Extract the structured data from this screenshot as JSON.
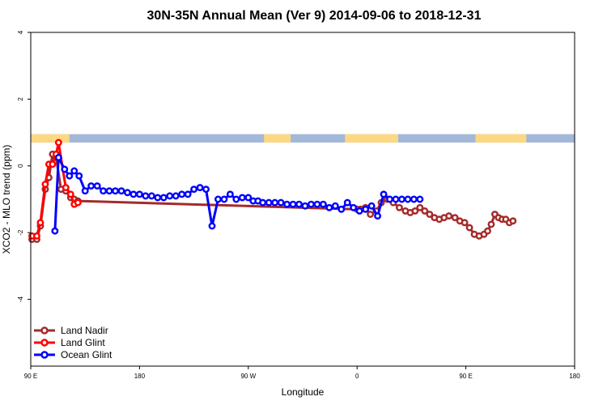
{
  "chart_data": {
    "type": "line",
    "title": "30N-35N Annual Mean (Ver 9)   2014-09-06 to 2018-12-31",
    "xlabel": "Longitude",
    "ylabel": "XCO2 - MLO trend (ppm)",
    "xlim": [
      90,
      540
    ],
    "ylim": [
      -6,
      4
    ],
    "x_ticks": [
      {
        "value": 90,
        "label": "90 E"
      },
      {
        "value": 180,
        "label": "180"
      },
      {
        "value": 270,
        "label": "90 W"
      },
      {
        "value": 360,
        "label": "0"
      },
      {
        "value": 450,
        "label": "90 E"
      },
      {
        "value": 540,
        "label": "180"
      }
    ],
    "y_ticks": [
      {
        "value": 4,
        "label": "4"
      },
      {
        "value": 2,
        "label": "2"
      },
      {
        "value": 0,
        "label": "0"
      },
      {
        "value": -2,
        "label": "-2"
      },
      {
        "value": -4,
        "label": "-4"
      }
    ],
    "legend_position": "bottom-left",
    "band": {
      "y_range": [
        0.7,
        0.95
      ],
      "ocean_color": "#a3b8d8",
      "land_color": "#fcd882",
      "land_segments": [
        [
          90,
          122
        ],
        [
          283,
          305
        ],
        [
          350,
          394
        ],
        [
          458,
          500
        ]
      ]
    },
    "series": [
      {
        "name": "Land Nadir",
        "color": "#a52a2a",
        "x": [
          91,
          95,
          98,
          102,
          105,
          108,
          111,
          115,
          119,
          123,
          126,
          129,
          360,
          363,
          367,
          371,
          376,
          380,
          385,
          390,
          395,
          400,
          404,
          408,
          412,
          416,
          420,
          424,
          428,
          432,
          436,
          441,
          445,
          449,
          453,
          457,
          461,
          465,
          468,
          471,
          474,
          477,
          480,
          483,
          486,
          489
        ],
        "y": [
          -2.2,
          -2.2,
          -1.8,
          -0.7,
          -0.35,
          0.35,
          0.25,
          -0.7,
          -0.75,
          -0.95,
          -1.0,
          -1.05,
          -1.3,
          -1.3,
          -1.25,
          -1.45,
          -1.35,
          -1.1,
          -1.0,
          -1.1,
          -1.25,
          -1.35,
          -1.4,
          -1.35,
          -1.25,
          -1.35,
          -1.45,
          -1.55,
          -1.6,
          -1.55,
          -1.5,
          -1.55,
          -1.65,
          -1.7,
          -1.85,
          -2.05,
          -2.1,
          -2.05,
          -1.95,
          -1.75,
          -1.45,
          -1.55,
          -1.6,
          -1.6,
          -1.7,
          -1.65
        ],
        "x_segments_note": ""
      },
      {
        "name": "Land Glint",
        "color": "#ff0000",
        "x": [
          91,
          95,
          98,
          102,
          105,
          108,
          111,
          113,
          119,
          123,
          126,
          129
        ],
        "y": [
          -2.1,
          -2.1,
          -1.7,
          -0.55,
          0.05,
          0.05,
          0.35,
          0.7,
          -0.65,
          -0.85,
          -1.15,
          -1.1
        ]
      },
      {
        "name": "Ocean Glint",
        "color": "#0000ff",
        "x": [
          110,
          113,
          118,
          122,
          126,
          130,
          135,
          140,
          145,
          150,
          155,
          160,
          165,
          170,
          175,
          180,
          185,
          190,
          195,
          200,
          205,
          210,
          215,
          220,
          225,
          230,
          235,
          240,
          245,
          250,
          255,
          260,
          265,
          270,
          274,
          278,
          282,
          287,
          292,
          297,
          302,
          307,
          312,
          317,
          322,
          327,
          332,
          337,
          342,
          347,
          352,
          357,
          362,
          367,
          372,
          377,
          382,
          387,
          392,
          397,
          402,
          407,
          412
        ],
        "y": [
          -1.95,
          0.25,
          -0.1,
          -0.3,
          -0.15,
          -0.3,
          -0.75,
          -0.6,
          -0.6,
          -0.75,
          -0.75,
          -0.75,
          -0.75,
          -0.8,
          -0.85,
          -0.85,
          -0.9,
          -0.9,
          -0.95,
          -0.95,
          -0.9,
          -0.9,
          -0.85,
          -0.85,
          -0.7,
          -0.65,
          -0.7,
          -1.8,
          -1.0,
          -1.0,
          -0.85,
          -1.0,
          -0.95,
          -0.95,
          -1.05,
          -1.05,
          -1.1,
          -1.1,
          -1.1,
          -1.1,
          -1.15,
          -1.15,
          -1.15,
          -1.2,
          -1.15,
          -1.15,
          -1.15,
          -1.25,
          -1.2,
          -1.3,
          -1.1,
          -1.25,
          -1.35,
          -1.3,
          -1.2,
          -1.5,
          -0.85,
          -1.0,
          -1.0,
          -1.0,
          -1.0,
          -1.0,
          -1.0
        ]
      }
    ]
  }
}
